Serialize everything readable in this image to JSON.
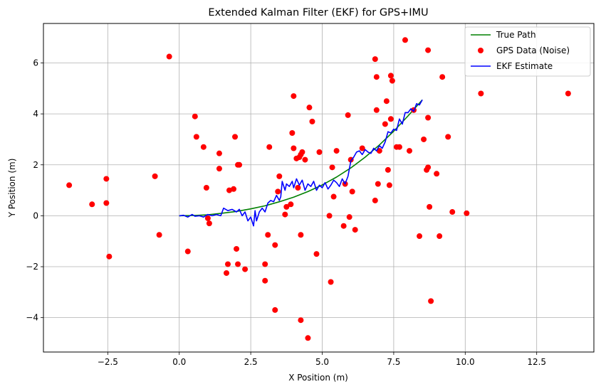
{
  "chart_data": {
    "type": "line",
    "title": "Extended Kalman Filter (EKF) for GPS+IMU",
    "xlabel": "X Position (m)",
    "ylabel": "Y Position (m)",
    "xlim": [
      -4.75,
      14.5
    ],
    "ylim": [
      -5.35,
      7.55
    ],
    "xticks": [
      -2.5,
      0.0,
      2.5,
      5.0,
      7.5,
      10.0,
      12.5
    ],
    "xtick_labels": [
      "−2.5",
      "0.0",
      "2.5",
      "5.0",
      "7.5",
      "10.0",
      "12.5"
    ],
    "yticks": [
      -4,
      -2,
      0,
      2,
      4,
      6
    ],
    "ytick_labels": [
      "−4",
      "−2",
      "0",
      "2",
      "4",
      "6"
    ],
    "grid": true,
    "legend_position": "top-right",
    "series": [
      {
        "name": "True Path",
        "kind": "line",
        "color": "#008000",
        "x": [
          0.0,
          0.5,
          1.0,
          1.5,
          2.0,
          2.5,
          3.0,
          3.5,
          4.0,
          4.5,
          5.0,
          5.5,
          6.0,
          6.5,
          7.0,
          7.5,
          8.0,
          8.5
        ],
        "y": [
          0.0,
          0.01,
          0.04,
          0.1,
          0.17,
          0.27,
          0.39,
          0.55,
          0.73,
          0.95,
          1.21,
          1.52,
          1.88,
          2.3,
          2.78,
          3.32,
          3.92,
          4.55
        ]
      },
      {
        "name": "GPS Data (Noise)",
        "kind": "scatter",
        "color": "#ff0000",
        "x": [
          -3.85,
          -3.05,
          -2.55,
          -2.55,
          -2.45,
          -0.85,
          -0.7,
          -0.35,
          0.3,
          0.55,
          0.6,
          0.85,
          0.95,
          1.0,
          1.05,
          1.4,
          1.4,
          1.65,
          1.7,
          1.75,
          1.9,
          1.95,
          2.0,
          2.05,
          2.05,
          2.1,
          2.3,
          3.0,
          3.0,
          3.1,
          3.15,
          3.35,
          3.35,
          3.45,
          3.5,
          3.7,
          3.75,
          3.9,
          3.95,
          4.0,
          4.0,
          4.1,
          4.15,
          4.2,
          4.25,
          4.25,
          4.25,
          4.3,
          4.4,
          4.5,
          4.55,
          4.65,
          4.8,
          4.9,
          5.25,
          5.3,
          5.35,
          5.4,
          5.5,
          5.75,
          5.8,
          5.9,
          5.95,
          6.0,
          6.05,
          6.15,
          6.4,
          6.85,
          6.85,
          6.9,
          6.9,
          6.95,
          7.0,
          7.2,
          7.25,
          7.3,
          7.35,
          7.4,
          7.4,
          7.45,
          7.6,
          7.7,
          7.9,
          8.05,
          8.2,
          8.4,
          8.55,
          8.65,
          8.7,
          8.7,
          8.7,
          8.75,
          8.8,
          9.0,
          9.1,
          9.2,
          9.4,
          9.55,
          10.05,
          10.55,
          13.6
        ],
        "y": [
          1.2,
          0.45,
          0.5,
          1.45,
          -1.6,
          1.55,
          -0.75,
          6.25,
          -1.4,
          3.9,
          3.1,
          2.7,
          1.1,
          -0.1,
          -0.3,
          1.85,
          2.45,
          -2.25,
          -1.9,
          1.0,
          1.05,
          3.1,
          -1.3,
          -1.9,
          2.0,
          2.0,
          -2.1,
          -2.55,
          -1.9,
          -0.75,
          2.7,
          -3.7,
          -1.15,
          0.95,
          1.55,
          0.05,
          0.35,
          0.45,
          3.25,
          2.65,
          4.7,
          2.25,
          1.1,
          2.3,
          2.4,
          -0.75,
          -4.1,
          2.5,
          2.2,
          -4.8,
          4.25,
          3.7,
          -1.5,
          2.5,
          0.0,
          -2.6,
          1.9,
          0.75,
          2.55,
          -0.4,
          1.25,
          3.95,
          -0.05,
          2.2,
          0.95,
          -0.55,
          2.65,
          0.6,
          6.15,
          4.15,
          5.45,
          1.25,
          2.55,
          3.6,
          4.5,
          1.8,
          1.2,
          3.8,
          5.5,
          5.3,
          2.7,
          2.7,
          6.9,
          2.55,
          4.15,
          -0.8,
          3.0,
          1.8,
          1.9,
          3.85,
          6.5,
          0.35,
          -3.35,
          1.65,
          -0.8,
          5.45,
          3.1,
          0.15,
          0.1,
          4.8,
          4.8
        ]
      },
      {
        "name": "EKF Estimate",
        "kind": "line",
        "color": "#0000ff",
        "x": [
          0.0,
          0.15,
          0.3,
          0.45,
          0.55,
          0.7,
          0.85,
          1.0,
          1.15,
          1.3,
          1.45,
          1.55,
          1.7,
          1.85,
          2.0,
          2.1,
          2.2,
          2.3,
          2.4,
          2.5,
          2.6,
          2.65,
          2.7,
          2.8,
          2.9,
          3.0,
          3.1,
          3.2,
          3.3,
          3.4,
          3.5,
          3.55,
          3.6,
          3.7,
          3.75,
          3.85,
          3.95,
          4.0,
          4.1,
          4.2,
          4.3,
          4.4,
          4.5,
          4.6,
          4.7,
          4.8,
          4.9,
          5.0,
          5.1,
          5.2,
          5.3,
          5.4,
          5.5,
          5.6,
          5.7,
          5.8,
          5.9,
          6.0,
          6.1,
          6.2,
          6.3,
          6.4,
          6.5,
          6.6,
          6.7,
          6.8,
          6.9,
          7.0,
          7.1,
          7.2,
          7.3,
          7.4,
          7.5,
          7.6,
          7.7,
          7.8,
          7.9,
          8.0,
          8.1,
          8.2,
          8.3,
          8.4,
          8.5
        ],
        "y": [
          0.0,
          0.02,
          -0.05,
          0.05,
          -0.02,
          0.0,
          -0.05,
          0.05,
          0.0,
          0.05,
          0.0,
          0.3,
          0.2,
          0.25,
          0.15,
          0.25,
          0.0,
          0.15,
          -0.2,
          -0.05,
          -0.4,
          0.2,
          -0.2,
          0.15,
          0.3,
          0.15,
          0.5,
          0.6,
          0.55,
          0.8,
          0.6,
          0.75,
          1.35,
          1.0,
          1.25,
          1.15,
          1.35,
          1.1,
          1.45,
          1.2,
          1.4,
          1.0,
          1.25,
          1.15,
          1.35,
          1.0,
          1.2,
          1.1,
          1.3,
          1.05,
          1.2,
          1.4,
          1.3,
          1.15,
          1.45,
          1.25,
          1.55,
          2.15,
          2.3,
          2.5,
          2.55,
          2.4,
          2.6,
          2.5,
          2.45,
          2.65,
          2.55,
          2.75,
          2.65,
          2.9,
          3.3,
          3.25,
          3.4,
          3.35,
          3.8,
          3.6,
          4.05,
          4.05,
          4.2,
          4.1,
          4.4,
          4.35,
          4.55
        ]
      }
    ]
  }
}
